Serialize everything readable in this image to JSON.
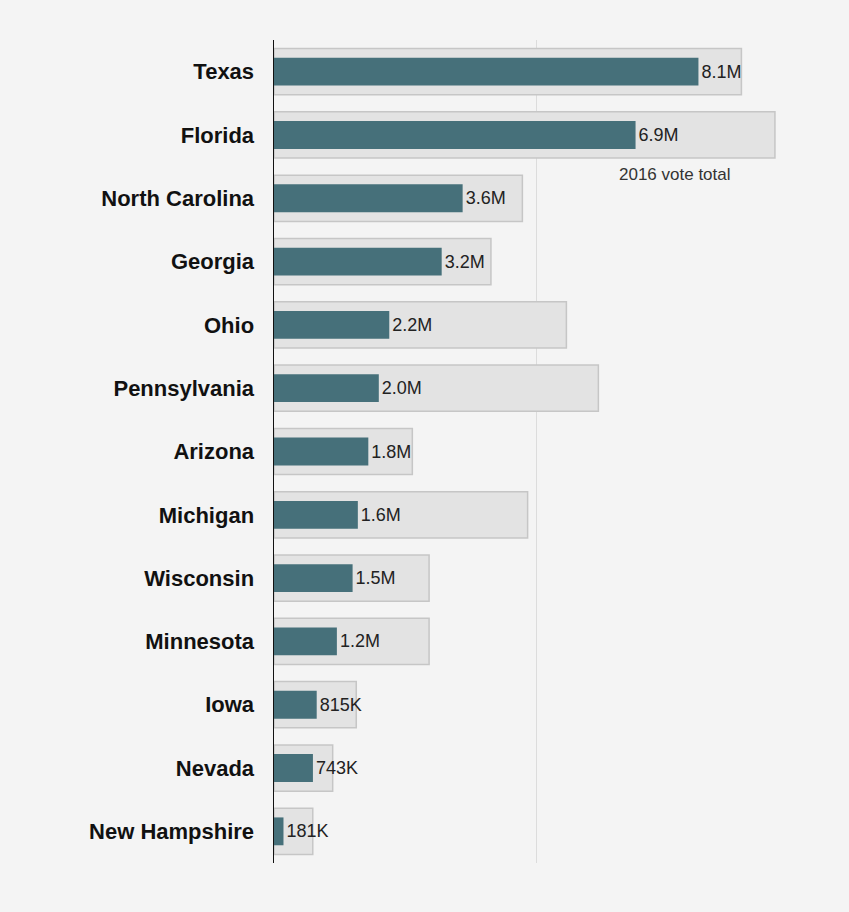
{
  "chart_data": {
    "type": "bar",
    "orientation": "horizontal",
    "categories": [
      "Texas",
      "Florida",
      "North Carolina",
      "Georgia",
      "Ohio",
      "Pennsylvania",
      "Arizona",
      "Michigan",
      "Wisconsin",
      "Minnesota",
      "Iowa",
      "Nevada",
      "New Hampshire"
    ],
    "series": [
      {
        "color": "#e3e3e3",
        "name": "2016 vote total",
        "values": [
          8.92,
          9.56,
          4.74,
          4.14,
          5.58,
          6.19,
          2.64,
          4.84,
          2.96,
          2.96,
          1.57,
          1.12,
          0.74
        ]
      },
      {
        "color": "#46707a",
        "values": [
          8.1,
          6.9,
          3.6,
          3.2,
          2.2,
          2.0,
          1.8,
          1.6,
          1.5,
          1.2,
          0.815,
          0.743,
          0.181
        ],
        "value_labels": [
          "8.1M",
          "6.9M",
          "3.6M",
          "3.2M",
          "2.2M",
          "2.0M",
          "1.8M",
          "1.6M",
          "1.5M",
          "1.2M",
          "815K",
          "743K",
          "181K"
        ]
      }
    ],
    "xlim": [
      0,
      10
    ],
    "xticks": [
      0,
      5,
      10
    ],
    "grid": true,
    "data_labels": true,
    "tick_labels": "y"
  }
}
